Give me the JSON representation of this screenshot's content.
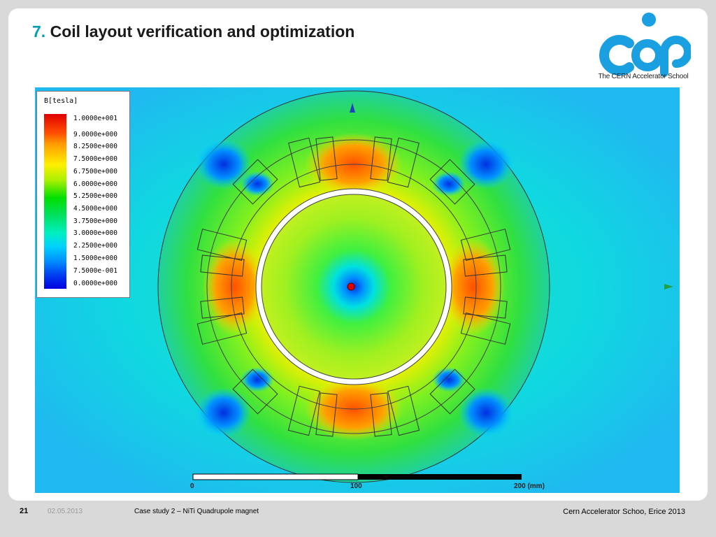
{
  "slide": {
    "title_number": "7.",
    "title_text": "Coil layout verification and optimization"
  },
  "logo": {
    "caption": "The CERN Accelerator School",
    "brand_color": "#1aa0e0"
  },
  "legend": {
    "title": "B[tesla]",
    "labels": [
      "1.0000e+001",
      "9.0000e+000",
      "8.2500e+000",
      "7.5000e+000",
      "6.7500e+000",
      "6.0000e+000",
      "5.2500e+000",
      "4.5000e+000",
      "3.7500e+000",
      "3.0000e+000",
      "2.2500e+000",
      "1.5000e+000",
      "7.5000e-001",
      "0.0000e+000"
    ]
  },
  "scale": {
    "label_0": "0",
    "label_100": "100",
    "label_200": "200 (mm)"
  },
  "footer": {
    "page": "21",
    "date": "02.05.2013",
    "case": "Case study 2 – NiTi Quadrupole magnet",
    "school": "Cern Accelerator Schoo, Erice 2013"
  }
}
